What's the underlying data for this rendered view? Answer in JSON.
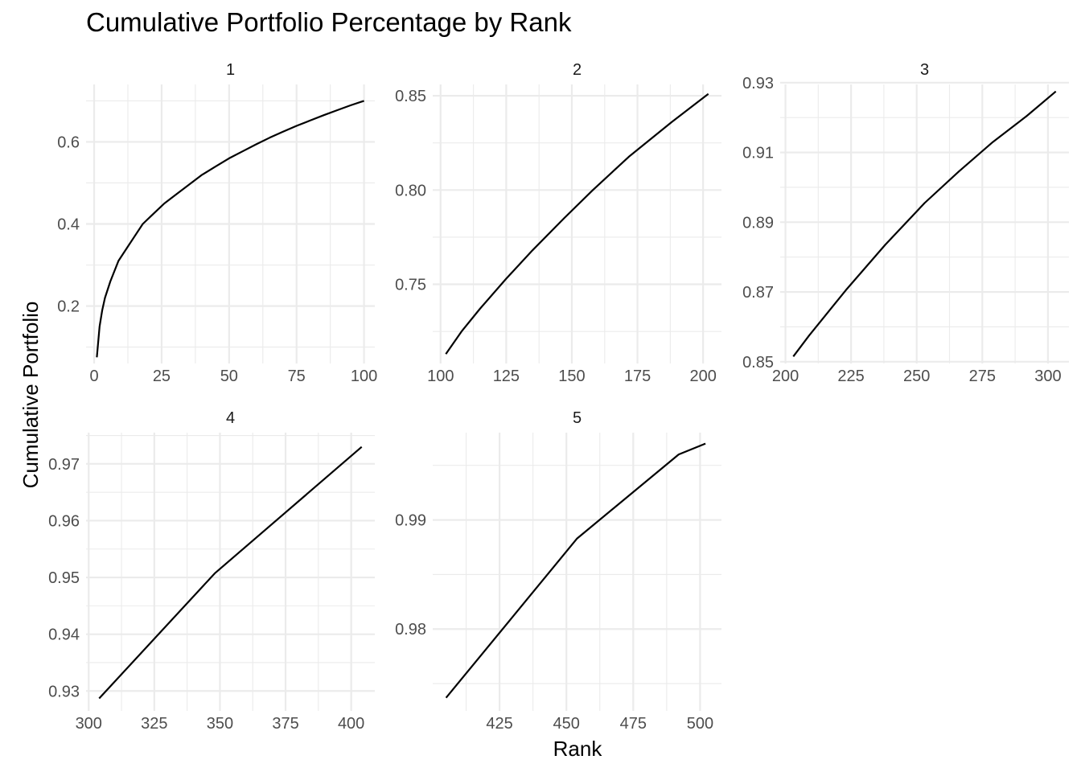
{
  "chart_data": {
    "type": "line",
    "title": "Cumulative Portfolio Percentage by Rank",
    "xlabel": "Rank",
    "ylabel": "Cumulative Portfolio",
    "grid": true,
    "facets": [
      {
        "label": "1",
        "xlim": [
          -3,
          104
        ],
        "ylim": [
          0.06,
          0.74
        ],
        "xticks": [
          0,
          25,
          50,
          75,
          100
        ],
        "yticks": [
          0.2,
          0.4,
          0.6
        ],
        "yticklabels": [
          "0.2",
          "0.4",
          "0.6"
        ],
        "x": [
          1,
          2,
          3,
          4,
          6,
          9,
          12,
          15,
          18,
          22,
          26,
          30,
          35,
          40,
          45,
          50,
          55,
          60,
          65,
          70,
          75,
          80,
          85,
          90,
          95,
          100
        ],
        "y": [
          0.075,
          0.15,
          0.19,
          0.22,
          0.26,
          0.31,
          0.34,
          0.37,
          0.4,
          0.425,
          0.45,
          0.47,
          0.495,
          0.52,
          0.54,
          0.56,
          0.577,
          0.594,
          0.61,
          0.625,
          0.639,
          0.652,
          0.665,
          0.677,
          0.689,
          0.7
        ]
      },
      {
        "label": "2",
        "xlim": [
          97,
          207
        ],
        "ylim": [
          0.708,
          0.856
        ],
        "xticks": [
          100,
          125,
          150,
          175,
          200
        ],
        "yticks": [
          0.75,
          0.8,
          0.85
        ],
        "yticklabels": [
          "0.75",
          "0.80",
          "0.85"
        ],
        "x": [
          102,
          108,
          115,
          125,
          135,
          147,
          158,
          172,
          188,
          202
        ],
        "y": [
          0.713,
          0.725,
          0.737,
          0.753,
          0.768,
          0.785,
          0.8,
          0.818,
          0.836,
          0.851
        ]
      },
      {
        "label": "3",
        "xlim": [
          198,
          308
        ],
        "ylim": [
          0.8495,
          0.9295
        ],
        "xticks": [
          200,
          225,
          250,
          275,
          300
        ],
        "yticks": [
          0.85,
          0.87,
          0.89,
          0.91,
          0.93
        ],
        "yticklabels": [
          "0.85",
          "0.87",
          "0.89",
          "0.91",
          "0.93"
        ],
        "x": [
          203,
          209,
          223,
          238,
          253,
          266,
          279,
          292,
          303
        ],
        "y": [
          0.8515,
          0.8575,
          0.8705,
          0.8835,
          0.8955,
          0.9045,
          0.913,
          0.9205,
          0.9275
        ]
      },
      {
        "label": "4",
        "xlim": [
          299,
          409
        ],
        "ylim": [
          0.9265,
          0.9755
        ],
        "xticks": [
          300,
          325,
          350,
          375,
          400
        ],
        "yticks": [
          0.93,
          0.94,
          0.95,
          0.96,
          0.97
        ],
        "yticklabels": [
          "0.93",
          "0.94",
          "0.95",
          "0.96",
          "0.97"
        ],
        "x": [
          304,
          348,
          404
        ],
        "y": [
          0.9287,
          0.9507,
          0.973
        ]
      },
      {
        "label": "5",
        "xlim": [
          400,
          508
        ],
        "ylim": [
          0.9725,
          0.998
        ],
        "xticks": [
          425,
          450,
          475,
          500
        ],
        "yticks": [
          0.98,
          0.99
        ],
        "yticklabels": [
          "0.98",
          "0.99"
        ],
        "x": [
          405,
          454,
          492,
          502
        ],
        "y": [
          0.9737,
          0.9883,
          0.996,
          0.997
        ]
      }
    ]
  }
}
